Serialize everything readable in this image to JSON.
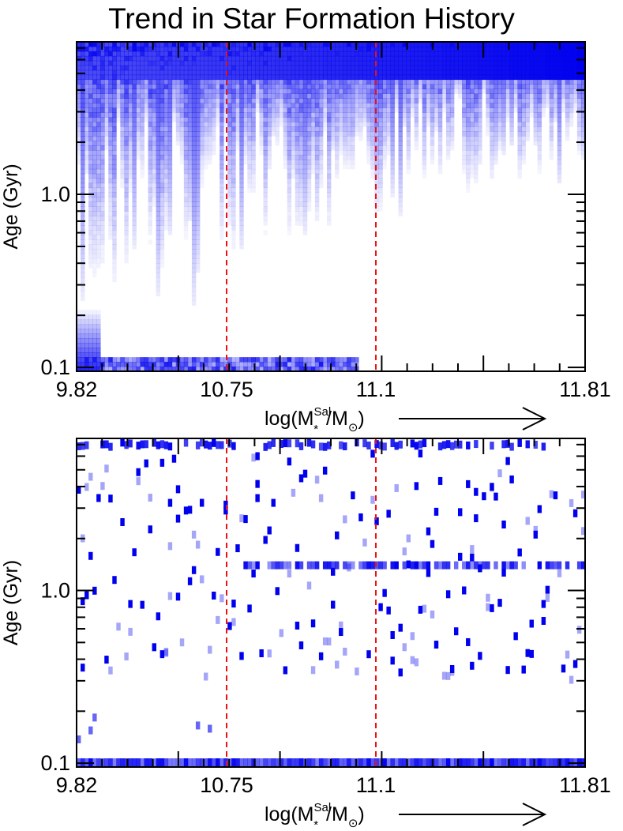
{
  "title": "Trend in Star Formation History",
  "colors": {
    "heat": "#0000ee",
    "frame": "#000000",
    "divider": "#ee1111",
    "background": "#ffffff"
  },
  "chart_data": [
    {
      "type": "heatmap",
      "ylabel": "Age (Gyr)",
      "ylog": true,
      "ylim": [
        0.095,
        7.6
      ],
      "ytick_labels": [
        "0.1",
        "1.0"
      ],
      "xtick_labels": [
        "9.82",
        "10.75",
        "11.1",
        "11.81"
      ],
      "xlabel": {
        "base": "log(M",
        "sup": "Sal",
        "sub": "*",
        "mid": "/M",
        "sub2": "⊙",
        "end": ")"
      },
      "divider_labels": [
        "10.75",
        "11.1"
      ],
      "arrow": "right-pointing",
      "columns": 128,
      "description_of_values": "column = galaxy index ordered by stellar mass; color intensity = normalized star formation weight at each age; dense/young-at-low-mass, old-dominated at high mass"
    },
    {
      "type": "heatmap",
      "ylabel": "Age (Gyr)",
      "ylog": true,
      "ylim": [
        0.095,
        7.6
      ],
      "ytick_labels": [
        "0.1",
        "1.0"
      ],
      "xtick_labels": [
        "9.82",
        "10.75",
        "11.1",
        "11.81"
      ],
      "xlabel": {
        "base": "log(M",
        "sup": "Sal",
        "sub": "*",
        "mid": "/M",
        "sub2": "⊙",
        "end": ")"
      },
      "divider_labels": [
        "10.75",
        "11.1"
      ],
      "arrow": "right-pointing",
      "columns": 128,
      "description_of_values": "discrete bursts per galaxy; bright band near 1.4 Gyr and 0.1 Gyr, old bursts at top"
    }
  ]
}
